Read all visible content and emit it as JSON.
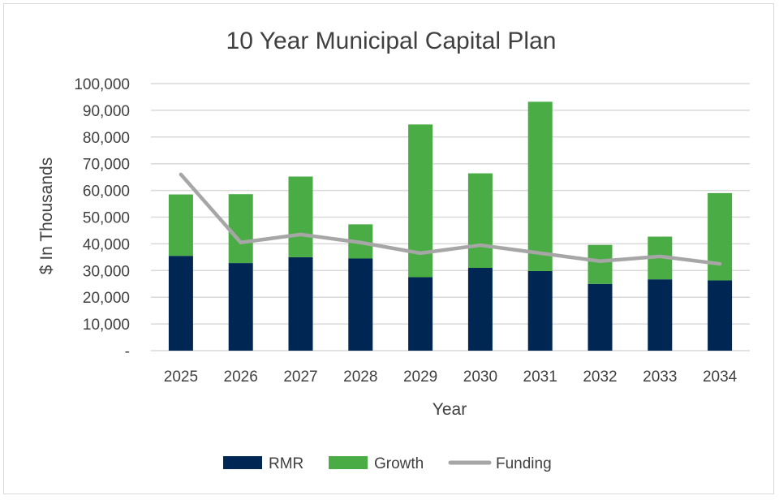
{
  "chart_data": {
    "type": "bar",
    "stacked": true,
    "title": "10 Year Municipal Capital Plan",
    "xlabel": "Year",
    "ylabel": "$ In Thousands",
    "ylim": [
      0,
      100000
    ],
    "ytick_labels": [
      "-",
      "10,000",
      "20,000",
      "30,000",
      "40,000",
      "50,000",
      "60,000",
      "70,000",
      "80,000",
      "90,000",
      "100,000"
    ],
    "categories": [
      "2025",
      "2026",
      "2027",
      "2028",
      "2029",
      "2030",
      "2031",
      "2032",
      "2033",
      "2034"
    ],
    "series": [
      {
        "name": "RMR",
        "kind": "bar",
        "color": "#002654",
        "values": [
          35500,
          32800,
          35000,
          34500,
          27500,
          31000,
          29800,
          25000,
          26700,
          26300
        ]
      },
      {
        "name": "Growth",
        "kind": "bar",
        "color": "#4aac44",
        "values": [
          23000,
          25800,
          30200,
          12800,
          57200,
          35400,
          63400,
          14600,
          16000,
          32700
        ]
      },
      {
        "name": "Funding",
        "kind": "line",
        "color": "#a6a6a6",
        "values": [
          66000,
          40500,
          43500,
          40500,
          36500,
          39500,
          36500,
          33500,
          35300,
          32500
        ]
      }
    ],
    "grid": true,
    "legend": "bottom"
  }
}
